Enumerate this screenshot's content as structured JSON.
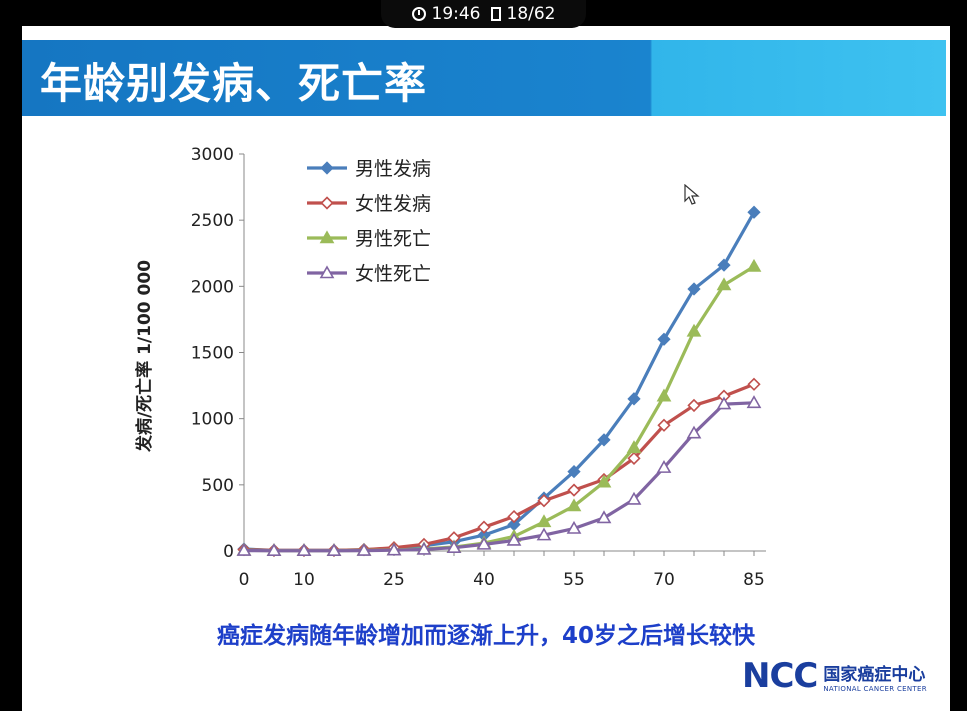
{
  "status": {
    "time": "19:46",
    "page": "18/62"
  },
  "title": "年龄别发病、死亡率",
  "caption": "癌症发病随年龄增加而逐渐上升，40岁之后增长较快",
  "logo": {
    "mark": "NCC",
    "cn": "国家癌症中心",
    "en": "NATIONAL CANCER CENTER"
  },
  "colors": {
    "title_bar": "#1576c2",
    "title_accent": "#3ec2f0",
    "caption": "#1d3fc9",
    "logo": "#1a3e9e"
  },
  "chart_data": {
    "type": "line",
    "title": "",
    "xlabel": "",
    "ylabel": "发病/死亡率   1/100 000",
    "x": [
      0,
      5,
      10,
      15,
      20,
      25,
      30,
      35,
      40,
      45,
      50,
      55,
      60,
      65,
      70,
      75,
      80,
      85
    ],
    "x_ticks": [
      0,
      10,
      25,
      40,
      55,
      70,
      85
    ],
    "ylim": [
      0,
      3000
    ],
    "y_ticks": [
      0,
      500,
      1000,
      1500,
      2000,
      2500,
      3000
    ],
    "grid": false,
    "legend": "top-left",
    "series": [
      {
        "name": "男性发病",
        "color": "#4a7ebb",
        "marker": "diamond-filled",
        "values": [
          15,
          5,
          5,
          5,
          10,
          20,
          40,
          70,
          120,
          200,
          400,
          600,
          840,
          1150,
          1600,
          1980,
          2160,
          2560
        ]
      },
      {
        "name": "女性发病",
        "color": "#c0504d",
        "marker": "diamond-open",
        "values": [
          10,
          5,
          5,
          5,
          10,
          25,
          50,
          100,
          180,
          260,
          380,
          460,
          540,
          700,
          950,
          1100,
          1170,
          1260
        ]
      },
      {
        "name": "男性死亡",
        "color": "#9bbb59",
        "marker": "triangle-filled",
        "values": [
          5,
          3,
          3,
          3,
          5,
          8,
          15,
          30,
          60,
          110,
          220,
          340,
          520,
          780,
          1170,
          1660,
          2010,
          2150
        ]
      },
      {
        "name": "女性死亡",
        "color": "#8064a2",
        "marker": "triangle-open",
        "values": [
          3,
          2,
          2,
          2,
          3,
          6,
          12,
          25,
          50,
          80,
          120,
          170,
          250,
          390,
          630,
          890,
          1110,
          1120
        ]
      }
    ]
  }
}
